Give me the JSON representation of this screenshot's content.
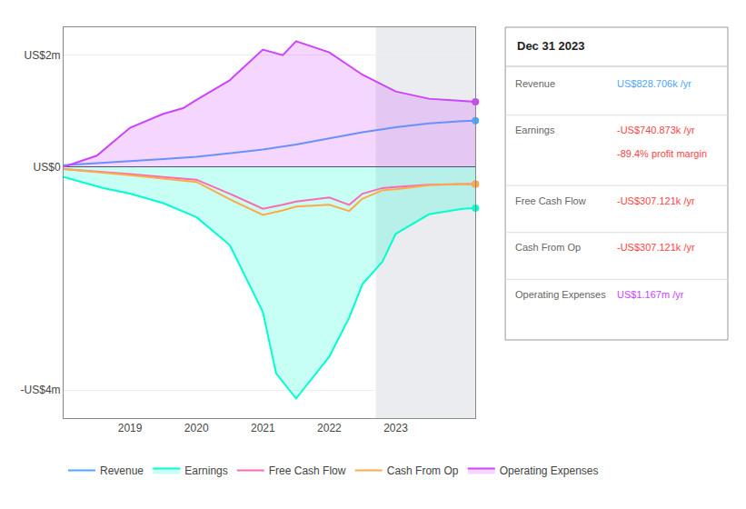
{
  "chart_data": {
    "type": "line",
    "xlim": [
      2018.0,
      2024.2
    ],
    "xticks": [
      2019,
      2020,
      2021,
      2022,
      2023
    ],
    "ylim": [
      -4500000,
      2500000
    ],
    "yticks": [
      {
        "value": 2000000,
        "label": "US$2m"
      },
      {
        "value": 0,
        "label": "US$0"
      },
      {
        "value": -4000000,
        "label": "-US$4m"
      }
    ],
    "grid": true,
    "legend": "bottom",
    "highlight": [
      2022.7,
      2024.2
    ],
    "series": [
      {
        "name": "Revenue",
        "color": "#4da6ff",
        "x": [
          2018.0,
          2018.3,
          2018.6,
          2019.0,
          2019.5,
          2020.0,
          2020.5,
          2021.0,
          2021.5,
          2022.0,
          2022.5,
          2023.0,
          2023.5,
          2024.0,
          2024.2
        ],
        "values": [
          30000,
          50000,
          70000,
          100000,
          140000,
          180000,
          240000,
          310000,
          400000,
          510000,
          620000,
          710000,
          780000,
          820000,
          828706
        ]
      },
      {
        "name": "Earnings",
        "color": "#00ffcc",
        "type": "area",
        "x": [
          2018.0,
          2018.3,
          2018.6,
          2019.0,
          2019.5,
          2020.0,
          2020.5,
          2021.0,
          2021.2,
          2021.5,
          2022.0,
          2022.3,
          2022.5,
          2022.8,
          2023.0,
          2023.5,
          2024.0,
          2024.2
        ],
        "values": [
          -180000,
          -280000,
          -380000,
          -480000,
          -650000,
          -900000,
          -1400000,
          -2600000,
          -3700000,
          -4150000,
          -3400000,
          -2700000,
          -2100000,
          -1700000,
          -1200000,
          -850000,
          -750000,
          -740873
        ]
      },
      {
        "name": "Free Cash Flow",
        "color": "#ff69b4",
        "x": [
          2018.0,
          2018.5,
          2019.0,
          2019.5,
          2020.0,
          2020.5,
          2021.0,
          2021.3,
          2021.5,
          2022.0,
          2022.3,
          2022.5,
          2022.8,
          2023.0,
          2023.5,
          2024.0,
          2024.2
        ],
        "values": [
          -40000,
          -80000,
          -130000,
          -180000,
          -230000,
          -480000,
          -750000,
          -680000,
          -620000,
          -550000,
          -680000,
          -480000,
          -380000,
          -360000,
          -320000,
          -310000,
          -307121
        ]
      },
      {
        "name": "Cash From Op",
        "color": "#ffaa44",
        "x": [
          2018.0,
          2018.5,
          2019.0,
          2019.5,
          2020.0,
          2020.5,
          2021.0,
          2021.3,
          2021.5,
          2022.0,
          2022.3,
          2022.5,
          2022.8,
          2023.0,
          2023.5,
          2024.0,
          2024.2
        ],
        "values": [
          -40000,
          -90000,
          -150000,
          -210000,
          -270000,
          -580000,
          -860000,
          -780000,
          -710000,
          -680000,
          -790000,
          -570000,
          -420000,
          -400000,
          -330000,
          -310000,
          -307121
        ]
      },
      {
        "name": "Operating Expenses",
        "color": "#cc44ff",
        "type": "area",
        "x": [
          2018.0,
          2018.5,
          2019.0,
          2019.5,
          2019.8,
          2020.0,
          2020.5,
          2021.0,
          2021.3,
          2021.5,
          2022.0,
          2022.5,
          2023.0,
          2023.5,
          2024.0,
          2024.2
        ],
        "values": [
          0,
          200000,
          700000,
          950000,
          1050000,
          1200000,
          1550000,
          2100000,
          2000000,
          2250000,
          2050000,
          1650000,
          1350000,
          1220000,
          1180000,
          1167000
        ]
      }
    ],
    "info_box": {
      "title": "Dec 31 2023",
      "rows": [
        {
          "label": "Revenue",
          "value": "US$828.706k /yr",
          "color": "#4da6ff"
        },
        {
          "label": "Earnings",
          "value": "-US$740.873k /yr",
          "sub": "-89.4% profit margin",
          "color": "#ff4444"
        },
        {
          "label": "Free Cash Flow",
          "value": "-US$307.121k /yr",
          "color": "#ff4444"
        },
        {
          "label": "Cash From Op",
          "value": "-US$307.121k /yr",
          "color": "#ff4444"
        },
        {
          "label": "Operating Expenses",
          "value": "US$1.167m /yr",
          "color": "#cc44ff"
        }
      ]
    }
  }
}
